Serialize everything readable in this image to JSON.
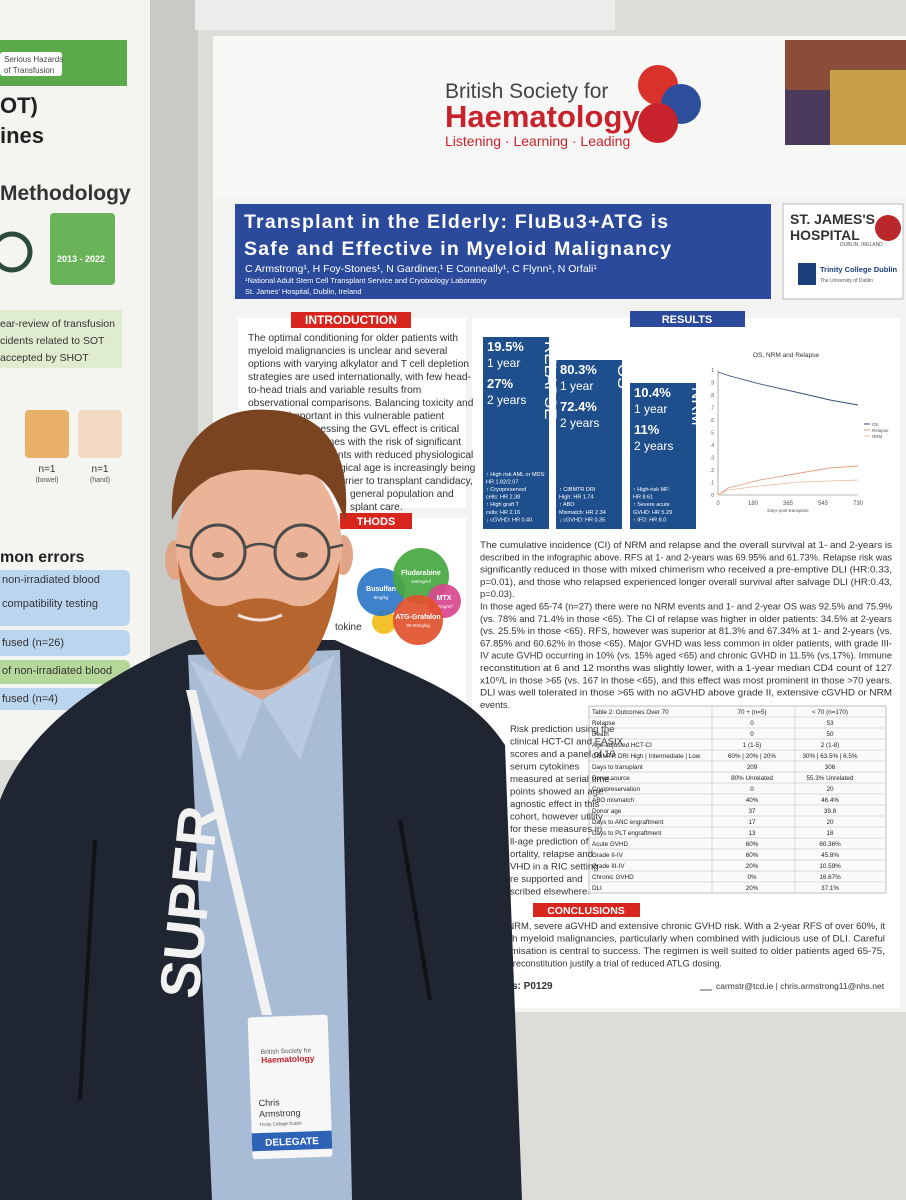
{
  "left_poster": {
    "banner": [
      "Serious Hazards",
      "of Transfusion"
    ],
    "title_lines": [
      "OT)",
      "ines"
    ],
    "methodology": "Methodology",
    "years": "2013 - 2022",
    "text_lines": [
      "ear-review of transfusion",
      "cidents related to SOT",
      "accepted by SHOT"
    ],
    "icons": [
      {
        "count": "n=1",
        "label": "(bowel)"
      },
      {
        "count": "n=1",
        "label": "(hand)"
      }
    ],
    "errors_heading": "mon errors",
    "errors": [
      "non-irradiated blood",
      "compatibility testing",
      "fused (n=26)",
      "of non-irradiated blood",
      "fused (n=4)"
    ]
  },
  "poster": {
    "logo": {
      "line1": "British Society for",
      "line2": "Haematology",
      "tagline": "Listening · Learning · Leading"
    },
    "title_lines": [
      "Transplant in the Elderly: FluBu3+ATG is",
      "Safe and Effective in Myeloid Malignancy"
    ],
    "authors": "C Armstrong¹, H Foy-Stones¹, N Gardiner,¹ E Conneally¹, C Flynn¹, N Orfali¹",
    "affiliation": [
      "¹National Adult Stem Cell Transplant Service and Cryobiology Laboratory",
      "St. James' Hospital, Dublin, Ireland"
    ],
    "hospital": {
      "name_lines": [
        "ST. JAMES'S",
        "HOSPITAL"
      ],
      "location": "DUBLIN, IRELAND"
    },
    "college": {
      "name": "Trinity College Dublin",
      "sub": "The University of Dublin"
    },
    "introduction": {
      "heading": "INTRODUCTION",
      "lines": [
        "The optimal conditioning for older patients with",
        "myeloid malignancies is unclear and several",
        "options with varying alkylator and T cell depletion",
        "strategies are used internationally, with few head-",
        "to-head trials and variable results from",
        "observational comparisons. Balancing toxicity and",
        "cacy is important in this vulnerable patient",
        "harnessing the GVL effect is critical",
        "comes with the risk of significant",
        "ients with reduced physiological",
        "gical age is increasingly being",
        "rrier to transplant candidacy,",
        "general population and",
        "splant care."
      ]
    },
    "methods": {
      "heading": "THODS",
      "fragment": "tokine",
      "drugs": [
        {
          "name": "Busulfan",
          "dose": "8mg/kg"
        },
        {
          "name": "Fludarabine",
          "dose": "160mg/m²"
        },
        {
          "name": "MTX",
          "dose": "30mg/m²"
        },
        {
          "name": "ATG-Grafalon",
          "dose": "30-60mg/kg"
        }
      ]
    },
    "results": {
      "heading": "RESULTS",
      "boxes": [
        {
          "label": "RELAPSE",
          "values": [
            "19.5%",
            "1 year",
            "27%",
            "2 years"
          ],
          "notes": [
            "↑ High risk AML or MDS:",
            "HR 1.82/2.07",
            "↑ Cryopreserved",
            "cells: HR 2.38",
            "↑ High graft T",
            "cells: HR 2.16",
            "↓ cGVHD: HR 0.40"
          ]
        },
        {
          "label": "OS",
          "values": [
            "80.3%",
            "1 year",
            "72.4%",
            "2 years"
          ],
          "notes": [
            "↑ CIBMTR DRI",
            "High: HR 1.74",
            "↑ ABO",
            "Mismatch: HR 2.34",
            "↓ cGVHD: HR 0.35"
          ]
        },
        {
          "label": "NRM",
          "values": [
            "10.4%",
            "1 year",
            "11%",
            "2 years"
          ],
          "notes": [
            "↑ High-risk MF:",
            "HR 8.61",
            "↑ Severe acute",
            "GVHD: HR 5.29",
            "↑ IFD: HR 8.0"
          ]
        }
      ],
      "chart": {
        "title": "OS, NRM and Relapse",
        "xlabel": "Days post-transplant",
        "xticks": [
          "0",
          "180",
          "365",
          "545",
          "730"
        ],
        "yticks": [
          "1",
          ".9",
          ".8",
          ".7",
          ".6",
          ".5",
          ".4",
          ".3",
          ".2",
          ".1",
          "0"
        ],
        "legend": [
          "OS",
          "Relapse",
          "NRM"
        ]
      },
      "paragraph_lines": [
        "The cumulative incidence (CI) of NRM and relapse and the overall survival at 1- and 2-years is",
        "described in the infographic above. RFS at 1- and 2-years was 69.95% and 61.73%. Relapse risk was",
        "significantly reduced in those with mixed chimerism who received a pre-emptive DLI (HR:0.33,",
        "p=0.01), and those who relapsed experienced longer overall survival after salvage DLI (HR:0.43,",
        "p=0.03).",
        "In those aged 65-74 (n=27) there were no NRM events and 1- and 2-year OS was 92.5% and 75.9%",
        "(vs. 78% and 71.4% in those <65). The CI of relapse was higher in older patients: 34.5% at 2-years",
        "(vs. 25.5% in those <65). RFS, however was superior at 81.3% and 67.34% at 1- and 2-years (vs.",
        "67.85% and 60.62% in those <65). Major GVHD was less common in older patients, with grade III-",
        "IV acute GVHD occurring in 10% (vs. 15% aged <65) and chronic GVHD in 11.5% (vs.17%). Immune",
        "reconstitution at 6 and 12 months was slightly lower, with a 1-year median CD4 count of 127",
        "x10⁶/L in those >65 (vs. 167 in those <65), and this effect was most prominent in those >70 years.",
        "DLI was well tolerated in those >65 with no aGVHD above grade II, extensive cGVHD or NRM",
        "events."
      ],
      "risk_lines": [
        "Risk prediction using the",
        "clinical HCT-CI and EASIX",
        "scores and a panel of 10",
        "serum cytokines",
        "measured at serial time-",
        "points showed an age",
        "agnostic effect in this",
        "cohort, however utility",
        "for these measures in",
        "ll-age prediction of",
        "ortality, relapse and",
        "VHD in a RIC setting",
        "re supported and",
        "scribed elsewhere."
      ],
      "table": {
        "rows": [
          [
            "Table 2: Outcomes Over 70",
            "70 + (n=5)",
            "< 70 (n=170)"
          ],
          [
            "Relapse",
            "0",
            "53"
          ],
          [
            "Death",
            "0",
            "50"
          ],
          [
            "Age-adjusted HCT-CI",
            "1 (1-5)",
            "2 (1-8)"
          ],
          [
            "CIBMTR DRI  High | Intermediate | Low",
            "60% | 20% | 20%",
            "30% | 63.5% | 6.5%"
          ],
          [
            "Days to transplant",
            "209",
            "306"
          ],
          [
            "Donor source",
            "80% Unrelated",
            "55.3% Unrelated"
          ],
          [
            "Cryopreservation",
            "0",
            "20"
          ],
          [
            "ABO mismatch",
            "40%",
            "46.4%"
          ],
          [
            "Donor age",
            "37",
            "39.8"
          ],
          [
            "Days to ANC engraftment",
            "17",
            "20"
          ],
          [
            "Days to PLT engraftment",
            "13",
            "18"
          ],
          [
            "Acute GVHD",
            "60%",
            "60.36%"
          ],
          [
            "Grade II-IV",
            "60%",
            "45.8%"
          ],
          [
            "Grade III-IV",
            "20%",
            "10.59%"
          ],
          [
            "Chronic GVHD",
            "0%",
            "16.67%"
          ],
          [
            "DLI",
            "20%",
            "37.1%"
          ]
        ]
      }
    },
    "conclusions": {
      "heading": "CONCLUSIONS",
      "lines": [
        "v NRM, severe aGVHD and extensive chronic GVHD risk. With a 2-year RFS of over 60%, it",
        "with myeloid malignancies, particularly when combined with judicious use of DLI. Careful",
        "ptimisation is central to success. The regimen is well suited to older patients aged 65-75,",
        "ne reconstitution justify a trial of reduced ATLG dosing."
      ]
    },
    "footer": {
      "poster_id": "s: P0129",
      "contact": "carmstr@tcd.ie | chris.armstrong11@nhs.net"
    }
  },
  "badge": {
    "org_lines": [
      "British Society for",
      "Haematology"
    ],
    "first_name": "Chris",
    "last_name": "Armstrong",
    "institution": "Trinity College Dublin",
    "role": "DELEGATE"
  },
  "jacket_text": "SUPER"
}
